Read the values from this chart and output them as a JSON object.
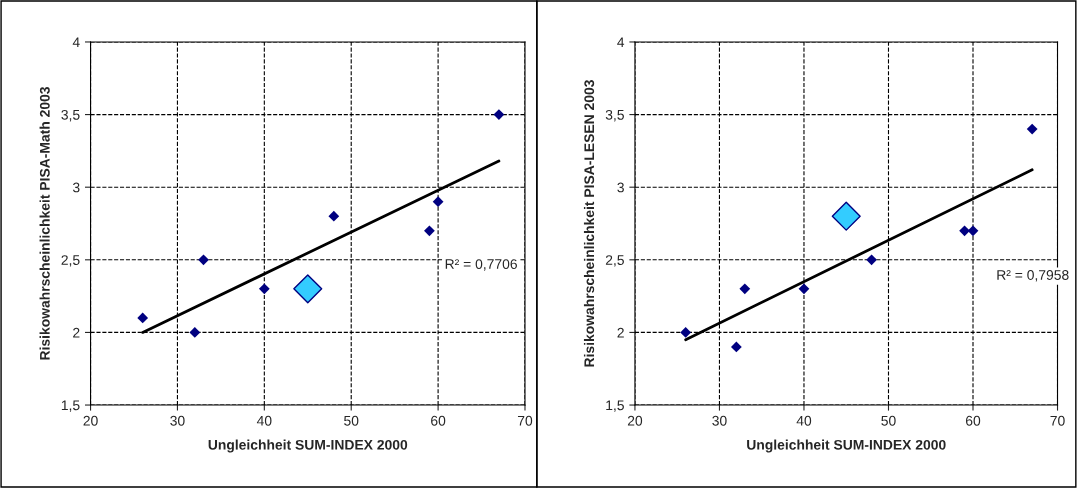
{
  "chart_data": [
    {
      "type": "scatter",
      "xlabel": "Ungleichheit SUM-INDEX 2000",
      "ylabel": "Risikowahrscheinlichkeit PISA-Math 2003",
      "series": [
        {
          "color": "#000080",
          "x": [
            26,
            32,
            33,
            40,
            48,
            59,
            60,
            67
          ],
          "values": [
            2.1,
            2.0,
            2.5,
            2.3,
            2.8,
            2.7,
            2.9,
            3.5
          ],
          "marker": "diamond"
        },
        {
          "color": "#33ccff",
          "x": [
            45
          ],
          "values": [
            2.3
          ],
          "marker": "diamond"
        },
        {
          "type": "line",
          "color": "#000000",
          "x": [
            26,
            67
          ],
          "values": [
            2.0,
            3.18
          ]
        }
      ],
      "annotations": [
        "R² = 0,7706"
      ],
      "xlim": [
        20,
        70
      ],
      "xticks": [
        20,
        30,
        40,
        50,
        60,
        70
      ],
      "ylim": [
        1.5,
        4
      ],
      "yticks": [
        {
          "value": 1.5,
          "label": "1,5"
        },
        2,
        {
          "value": 2.5,
          "label": "2,5"
        },
        3,
        {
          "value": 3.5,
          "label": "3,5"
        },
        4
      ],
      "grid": true
    },
    {
      "type": "scatter",
      "xlabel": "Ungleichheit SUM-INDEX 2000",
      "ylabel": "Risikowahrscheinlichkeit PISA-LESEN 2003",
      "series": [
        {
          "color": "#000080",
          "x": [
            26,
            32,
            33,
            40,
            48,
            59,
            60,
            67
          ],
          "values": [
            2.0,
            1.9,
            2.3,
            2.3,
            2.5,
            2.7,
            2.7,
            3.4
          ],
          "marker": "diamond"
        },
        {
          "color": "#33ccff",
          "x": [
            45
          ],
          "values": [
            2.8
          ],
          "marker": "diamond"
        },
        {
          "type": "line",
          "color": "#000000",
          "x": [
            26,
            67
          ],
          "values": [
            1.95,
            3.12
          ]
        }
      ],
      "annotations": [
        "R² = 0,7958"
      ],
      "xlim": [
        20,
        70
      ],
      "xticks": [
        20,
        30,
        40,
        50,
        60,
        70
      ],
      "ylim": [
        1.5,
        4
      ],
      "yticks": [
        {
          "value": 1.5,
          "label": "1,5"
        },
        2,
        {
          "value": 2.5,
          "label": "2,5"
        },
        3,
        {
          "value": 3.5,
          "label": "3,5"
        },
        4
      ],
      "grid": true
    }
  ]
}
